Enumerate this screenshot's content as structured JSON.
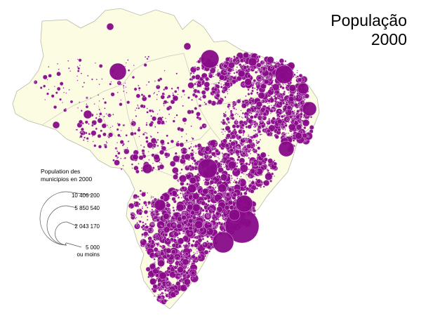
{
  "title": {
    "line1": "População",
    "line2": "2000"
  },
  "legend": {
    "title_line1": "Population des",
    "title_line2": "municipios en 2000",
    "values": [
      "10 406 200",
      "5 850 540",
      "2 043 170",
      "5 000"
    ],
    "min_note": "ou moins"
  },
  "colors": {
    "land": "#fcfce3",
    "border": "#b9b9a6",
    "symbol": "#880a88",
    "symbol_stroke": "#f4e0f4"
  }
}
